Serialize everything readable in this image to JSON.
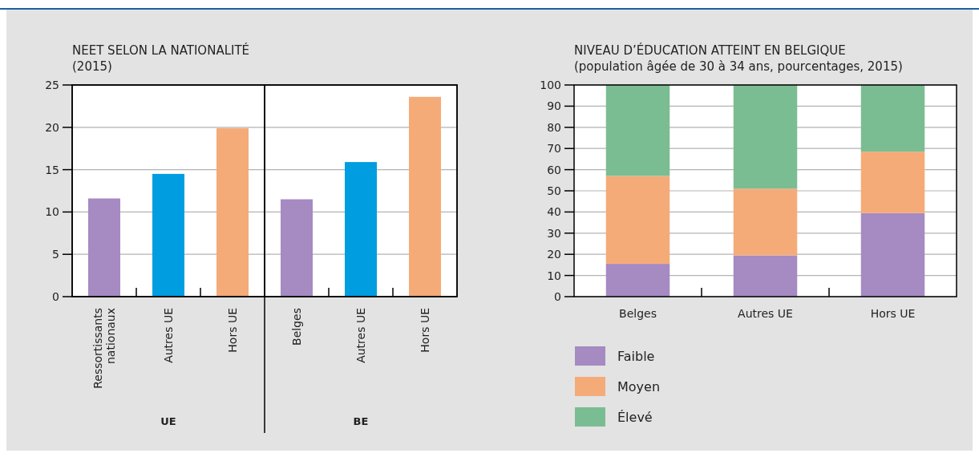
{
  "chart_data": [
    {
      "type": "bar",
      "title": "NEET SELON LA NATIONALITÉ",
      "subtitle": "(2015)",
      "categories": [
        "Ressortissants nationaux",
        "Autres UE",
        "Hors UE",
        "Belges",
        "Autres UE",
        "Hors UE"
      ],
      "values": [
        11.6,
        14.5,
        19.9,
        11.5,
        15.9,
        23.6
      ],
      "colors": [
        "#a68ac2",
        "#009ee0",
        "#f5ab78",
        "#a68ac2",
        "#009ee0",
        "#f5ab78"
      ],
      "ylim": [
        0,
        25
      ],
      "yticks": [
        0,
        5,
        10,
        15,
        20,
        25
      ],
      "grid": "y",
      "annotations": [
        "UE",
        "BE"
      ]
    },
    {
      "type": "bar",
      "stacked": true,
      "title": "NIVEAU D’ÉDUCATION ATTEINT EN BELGIQUE",
      "subtitle": "(population âgée de 30 à 34 ans, pourcentages, 2015)",
      "categories": [
        "Belges",
        "Autres UE",
        "Hors UE"
      ],
      "series": [
        {
          "name": "Faible",
          "color": "#a68ac2",
          "values": [
            15.5,
            19.5,
            39.5
          ]
        },
        {
          "name": "Moyen",
          "color": "#f5ab78",
          "values": [
            41.5,
            31.5,
            29
          ]
        },
        {
          "name": "Élevé",
          "color": "#7bbd93",
          "values": [
            43,
            49,
            31.5
          ]
        }
      ],
      "ylim": [
        0,
        100
      ],
      "yticks": [
        0,
        10,
        20,
        30,
        40,
        50,
        60,
        70,
        80,
        90,
        100
      ],
      "grid": "y",
      "legend": "bottom"
    }
  ]
}
